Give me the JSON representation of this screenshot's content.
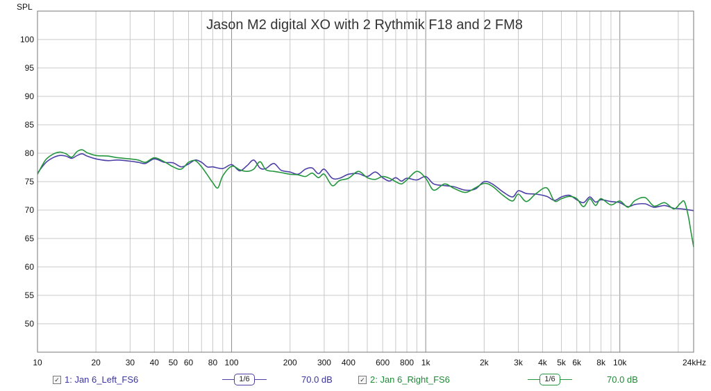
{
  "colors": {
    "series1": "#4b3fa6",
    "series2": "#23963c",
    "grid": "#c8c8c8",
    "major_grid": "#8c8c8c"
  },
  "chart_data": {
    "type": "line",
    "title": "Jason M2 digital XO with 2 Rythmik F18 and 2 FM8",
    "ylabel": "SPL",
    "xscale": "log",
    "xlim": [
      10,
      24000
    ],
    "ylim": [
      45,
      105
    ],
    "grid": true,
    "legend_position": "bottom",
    "x_tick_labels": [
      "10",
      "20",
      "30",
      "40",
      "50",
      "60",
      "80",
      "100",
      "200",
      "300",
      "400",
      "600",
      "800",
      "1k",
      "2k",
      "3k",
      "4k",
      "5k",
      "6k",
      "8k",
      "10k",
      "24kHz"
    ],
    "y_tick_labels": [
      "100",
      "95",
      "90",
      "85",
      "80",
      "75",
      "70",
      "65",
      "60",
      "55",
      "50"
    ],
    "series": [
      {
        "name": "1: Jan 6_Left_FS6",
        "smoothing": "1/6",
        "offset": "70.0 dB",
        "color": "#4b3fa6",
        "points": [
          [
            10,
            76.5
          ],
          [
            11,
            78.3
          ],
          [
            12,
            79.2
          ],
          [
            13,
            79.6
          ],
          [
            14,
            79.5
          ],
          [
            15,
            79.1
          ],
          [
            16,
            79.6
          ],
          [
            17,
            79.9
          ],
          [
            18,
            79.5
          ],
          [
            20,
            79.0
          ],
          [
            23,
            78.7
          ],
          [
            26,
            78.8
          ],
          [
            30,
            78.6
          ],
          [
            33,
            78.4
          ],
          [
            36,
            78.2
          ],
          [
            40,
            79.0
          ],
          [
            45,
            78.4
          ],
          [
            50,
            78.3
          ],
          [
            55,
            77.6
          ],
          [
            60,
            78.1
          ],
          [
            65,
            78.8
          ],
          [
            70,
            78.4
          ],
          [
            75,
            77.6
          ],
          [
            80,
            77.6
          ],
          [
            90,
            77.3
          ],
          [
            100,
            78.0
          ],
          [
            110,
            76.9
          ],
          [
            120,
            77.8
          ],
          [
            130,
            78.8
          ],
          [
            140,
            77.4
          ],
          [
            150,
            77.3
          ],
          [
            165,
            78.2
          ],
          [
            180,
            77.0
          ],
          [
            200,
            76.7
          ],
          [
            220,
            76.3
          ],
          [
            240,
            77.2
          ],
          [
            260,
            77.4
          ],
          [
            280,
            76.4
          ],
          [
            300,
            77.2
          ],
          [
            330,
            75.6
          ],
          [
            360,
            75.6
          ],
          [
            400,
            76.3
          ],
          [
            450,
            76.4
          ],
          [
            500,
            75.9
          ],
          [
            550,
            76.7
          ],
          [
            600,
            75.7
          ],
          [
            650,
            75.1
          ],
          [
            700,
            75.7
          ],
          [
            750,
            75.1
          ],
          [
            800,
            75.6
          ],
          [
            900,
            75.3
          ],
          [
            1000,
            75.9
          ],
          [
            1100,
            74.6
          ],
          [
            1250,
            74.3
          ],
          [
            1400,
            74.1
          ],
          [
            1600,
            73.5
          ],
          [
            1800,
            73.7
          ],
          [
            2000,
            75.0
          ],
          [
            2200,
            74.6
          ],
          [
            2500,
            73.2
          ],
          [
            2800,
            72.3
          ],
          [
            3000,
            73.4
          ],
          [
            3300,
            72.9
          ],
          [
            3700,
            72.8
          ],
          [
            4200,
            72.4
          ],
          [
            4600,
            71.7
          ],
          [
            5000,
            72.3
          ],
          [
            5500,
            72.6
          ],
          [
            6000,
            71.8
          ],
          [
            6500,
            71.3
          ],
          [
            7000,
            72.3
          ],
          [
            7500,
            71.4
          ],
          [
            8000,
            71.8
          ],
          [
            9000,
            71.5
          ],
          [
            10000,
            71.3
          ],
          [
            11000,
            70.6
          ],
          [
            12000,
            71.0
          ],
          [
            13500,
            71.1
          ],
          [
            15000,
            70.5
          ],
          [
            17000,
            70.8
          ],
          [
            19000,
            70.3
          ],
          [
            21000,
            70.2
          ],
          [
            24000,
            69.9
          ]
        ]
      },
      {
        "name": "2: Jan 6_Right_FS6",
        "smoothing": "1/6",
        "offset": "70.0 dB",
        "color": "#23963c",
        "points": [
          [
            10,
            76.3
          ],
          [
            11,
            78.8
          ],
          [
            12,
            79.8
          ],
          [
            13,
            80.2
          ],
          [
            14,
            79.9
          ],
          [
            15,
            79.3
          ],
          [
            16,
            80.3
          ],
          [
            17,
            80.6
          ],
          [
            18,
            80.1
          ],
          [
            20,
            79.6
          ],
          [
            23,
            79.5
          ],
          [
            26,
            79.2
          ],
          [
            30,
            79.0
          ],
          [
            33,
            78.8
          ],
          [
            36,
            78.4
          ],
          [
            40,
            79.2
          ],
          [
            45,
            78.5
          ],
          [
            50,
            77.6
          ],
          [
            55,
            77.2
          ],
          [
            60,
            78.4
          ],
          [
            65,
            78.7
          ],
          [
            70,
            77.6
          ],
          [
            75,
            76.2
          ],
          [
            80,
            74.8
          ],
          [
            85,
            73.9
          ],
          [
            90,
            76.0
          ],
          [
            100,
            77.7
          ],
          [
            110,
            77.1
          ],
          [
            120,
            76.8
          ],
          [
            130,
            77.2
          ],
          [
            140,
            78.5
          ],
          [
            150,
            77.1
          ],
          [
            165,
            76.8
          ],
          [
            180,
            76.6
          ],
          [
            200,
            76.3
          ],
          [
            220,
            76.2
          ],
          [
            240,
            75.9
          ],
          [
            260,
            76.5
          ],
          [
            280,
            75.7
          ],
          [
            300,
            76.3
          ],
          [
            330,
            74.3
          ],
          [
            360,
            75.2
          ],
          [
            400,
            75.6
          ],
          [
            450,
            76.8
          ],
          [
            500,
            75.7
          ],
          [
            550,
            75.4
          ],
          [
            600,
            75.9
          ],
          [
            650,
            75.6
          ],
          [
            700,
            75.0
          ],
          [
            750,
            74.6
          ],
          [
            800,
            75.3
          ],
          [
            900,
            76.8
          ],
          [
            1000,
            75.6
          ],
          [
            1100,
            73.5
          ],
          [
            1250,
            74.6
          ],
          [
            1400,
            73.8
          ],
          [
            1600,
            73.1
          ],
          [
            1800,
            73.9
          ],
          [
            2000,
            74.7
          ],
          [
            2200,
            74.2
          ],
          [
            2500,
            72.6
          ],
          [
            2800,
            71.6
          ],
          [
            3000,
            72.8
          ],
          [
            3300,
            71.5
          ],
          [
            3700,
            72.9
          ],
          [
            4200,
            73.9
          ],
          [
            4600,
            71.6
          ],
          [
            5000,
            72.0
          ],
          [
            5500,
            72.4
          ],
          [
            6000,
            72.0
          ],
          [
            6500,
            70.6
          ],
          [
            7000,
            72.0
          ],
          [
            7500,
            70.8
          ],
          [
            8000,
            72.0
          ],
          [
            9000,
            70.9
          ],
          [
            10000,
            71.6
          ],
          [
            11000,
            70.5
          ],
          [
            12000,
            71.7
          ],
          [
            13500,
            72.2
          ],
          [
            15000,
            70.7
          ],
          [
            17000,
            71.3
          ],
          [
            19000,
            70.2
          ],
          [
            20500,
            71.2
          ],
          [
            21500,
            71.5
          ],
          [
            22500,
            69.0
          ],
          [
            23300,
            66.0
          ],
          [
            24000,
            63.5
          ]
        ]
      }
    ]
  }
}
